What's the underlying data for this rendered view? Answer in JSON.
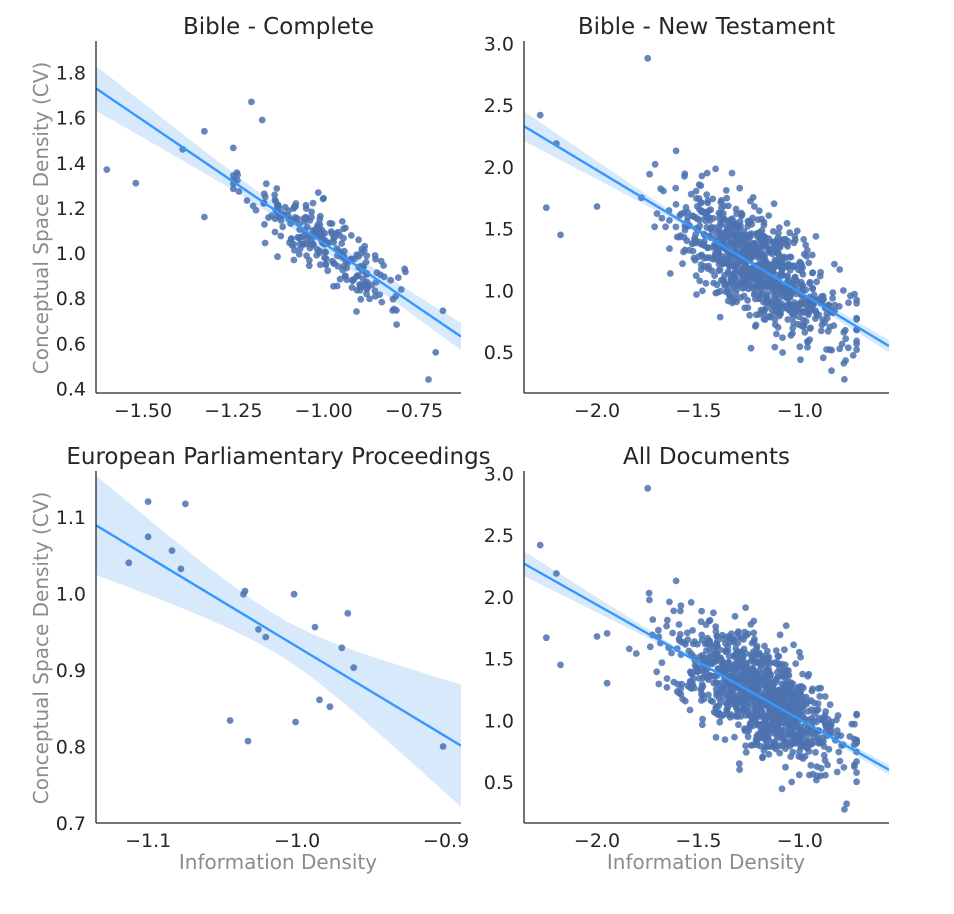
{
  "figure": {
    "ylabel": "Conceptual Space Density (CV)",
    "xlabel": "Information Density"
  },
  "chart_data": [
    {
      "type": "scatter",
      "title": "Bible - Complete",
      "xlim": [
        -1.63,
        -0.62
      ],
      "ylim": [
        0.38,
        1.94
      ],
      "xticks": [
        -1.5,
        -1.25,
        -1.0,
        -0.75
      ],
      "xtick_labels": [
        "−1.50",
        "−1.25",
        "−1.00",
        "−0.75"
      ],
      "yticks": [
        0.4,
        0.6,
        0.8,
        1.0,
        1.2,
        1.4,
        1.6,
        1.8
      ],
      "ytick_labels": [
        "0.4",
        "0.6",
        "0.8",
        "1.0",
        "1.2",
        "1.4",
        "1.6",
        "1.8"
      ],
      "ylabel": "Conceptual Space Density (CV)",
      "xlabel": "",
      "grid": false,
      "n_points": 260,
      "highlight_points": [
        [
          -1.6,
          1.37
        ],
        [
          -1.52,
          1.31
        ],
        [
          -1.39,
          1.46
        ],
        [
          -1.33,
          1.54
        ],
        [
          -1.33,
          1.16
        ],
        [
          -1.2,
          1.67
        ],
        [
          -1.17,
          1.59
        ],
        [
          -0.69,
          0.56
        ],
        [
          -0.71,
          0.44
        ]
      ],
      "regression": {
        "x": [
          -1.63,
          -0.62
        ],
        "y": [
          1.73,
          0.63
        ],
        "ci_at_ends": [
          0.1,
          0.06
        ],
        "ci_mid": 0.03
      },
      "cloud": {
        "mean": [
          -1.0,
          1.05
        ],
        "sd": [
          0.11,
          0.11
        ],
        "x_range": [
          -1.25,
          -0.67
        ]
      }
    },
    {
      "type": "scatter",
      "title": "Bible - New Testament",
      "xlim": [
        -2.36,
        -0.56
      ],
      "ylim": [
        0.17,
        3.02
      ],
      "xticks": [
        -2.0,
        -1.5,
        -1.0
      ],
      "xtick_labels": [
        "−2.0",
        "−1.5",
        "−1.0"
      ],
      "yticks": [
        0.5,
        1.0,
        1.5,
        2.0,
        2.5,
        3.0
      ],
      "ytick_labels": [
        "0.5",
        "1.0",
        "1.5",
        "2.0",
        "2.5",
        "3.0"
      ],
      "ylabel": "",
      "xlabel": "",
      "grid": false,
      "n_points": 900,
      "highlight_points": [
        [
          -2.28,
          2.42
        ],
        [
          -2.2,
          2.19
        ],
        [
          -2.25,
          1.67
        ],
        [
          -2.18,
          1.45
        ],
        [
          -1.75,
          2.88
        ],
        [
          -1.61,
          2.13
        ],
        [
          -0.73,
          0.97
        ],
        [
          -0.78,
          0.28
        ],
        [
          -2.0,
          1.68
        ]
      ],
      "regression": {
        "x": [
          -2.36,
          -0.56
        ],
        "y": [
          2.33,
          0.55
        ],
        "ci_at_ends": [
          0.12,
          0.05
        ],
        "ci_mid": 0.02
      },
      "cloud": {
        "mean": [
          -1.2,
          1.05
        ],
        "sd": [
          0.2,
          0.3
        ],
        "x_range": [
          -1.95,
          -0.72
        ]
      }
    },
    {
      "type": "scatter",
      "title": "European Parliamentary Proceedings",
      "xlim": [
        -1.135,
        -0.89
      ],
      "ylim": [
        0.7,
        1.16
      ],
      "xticks": [
        -1.1,
        -1.0,
        -0.9
      ],
      "xtick_labels": [
        "−1.1",
        "−1.0",
        "−0.9"
      ],
      "yticks": [
        0.7,
        0.8,
        0.9,
        1.0,
        1.1
      ],
      "ytick_labels": [
        "0.7",
        "0.8",
        "0.9",
        "1.0",
        "1.1"
      ],
      "ylabel": "Conceptual Space Density (CV)",
      "xlabel": "Information Density",
      "grid": false,
      "points": [
        [
          -1.1,
          1.12
        ],
        [
          -1.075,
          1.117
        ],
        [
          -1.1,
          1.074
        ],
        [
          -1.084,
          1.056
        ],
        [
          -1.078,
          1.032
        ],
        [
          -1.113,
          1.04
        ],
        [
          -1.035,
          1.003
        ],
        [
          -1.036,
          0.999
        ],
        [
          -1.002,
          0.999
        ],
        [
          -0.966,
          0.974
        ],
        [
          -0.988,
          0.956
        ],
        [
          -1.026,
          0.953
        ],
        [
          -1.021,
          0.943
        ],
        [
          -0.97,
          0.929
        ],
        [
          -0.962,
          0.903
        ],
        [
          -0.985,
          0.861
        ],
        [
          -0.978,
          0.852
        ],
        [
          -1.045,
          0.834
        ],
        [
          -1.001,
          0.832
        ],
        [
          -1.033,
          0.807
        ],
        [
          -0.902,
          0.8
        ]
      ],
      "regression": {
        "x": [
          -1.135,
          -0.89
        ],
        "y": [
          1.089,
          0.801
        ],
        "ci_at_ends": [
          0.065,
          0.08
        ],
        "ci_mid": 0.025
      }
    },
    {
      "type": "scatter",
      "title": "All Documents",
      "xlim": [
        -2.36,
        -0.56
      ],
      "ylim": [
        0.17,
        3.02
      ],
      "xticks": [
        -2.0,
        -1.5,
        -1.0
      ],
      "xtick_labels": [
        "−2.0",
        "−1.5",
        "−1.0"
      ],
      "yticks": [
        0.5,
        1.0,
        1.5,
        2.0,
        2.5,
        3.0
      ],
      "ytick_labels": [
        "0.5",
        "1.0",
        "1.5",
        "2.0",
        "2.5",
        "3.0"
      ],
      "ylabel": "",
      "xlabel": "Information Density",
      "grid": false,
      "n_points": 1100,
      "highlight_points": [
        [
          -2.28,
          2.42
        ],
        [
          -2.2,
          2.19
        ],
        [
          -2.25,
          1.67
        ],
        [
          -2.18,
          1.45
        ],
        [
          -1.75,
          2.88
        ],
        [
          -1.61,
          2.13
        ],
        [
          -0.73,
          0.97
        ],
        [
          -0.78,
          0.28
        ],
        [
          -2.0,
          1.68
        ]
      ],
      "regression": {
        "x": [
          -2.36,
          -0.56
        ],
        "y": [
          2.27,
          0.6
        ],
        "ci_at_ends": [
          0.1,
          0.04
        ],
        "ci_mid": 0.015
      },
      "cloud": {
        "mean": [
          -1.2,
          1.05
        ],
        "sd": [
          0.2,
          0.3
        ],
        "x_range": [
          -1.95,
          -0.72
        ]
      }
    }
  ],
  "colors": {
    "points": "#4c72b0",
    "regression_line": "#3399ff",
    "confidence_band": "#c7e0fb"
  }
}
